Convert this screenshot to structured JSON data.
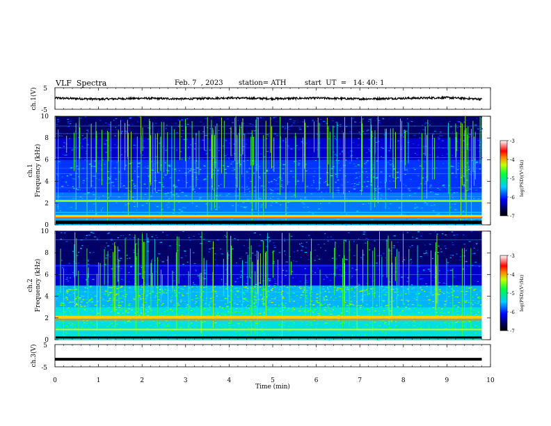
{
  "header": {
    "title": "VLF  Spectra",
    "date": "Feb. 7  , 2023",
    "station": "station= ATH",
    "start": "start  UT  =   14: 40: 1"
  },
  "chart_data": [
    {
      "type": "line",
      "panel": "ch1-waveform",
      "ylabel": "ch.1(V)",
      "ylim": [
        -5,
        5
      ],
      "yticks": [
        "5",
        "-5"
      ],
      "xlim": [
        0,
        10
      ],
      "series": [
        {
          "values_description_note": "",
          "x": [
            0,
            1,
            2,
            3,
            4,
            5,
            6,
            7,
            8,
            9,
            9.8
          ],
          "values": [
            0.2,
            -0.3,
            0.1,
            -0.2,
            0.3,
            -0.1,
            0.2,
            -0.2,
            0.1,
            0.4,
            -0.3
          ]
        }
      ],
      "line_color": "#000000"
    },
    {
      "type": "heatmap",
      "panel": "ch1-spectrogram",
      "ylabel": "ch.1\nFrequency  (kHz)",
      "ylabel_top": "ch.1",
      "ylabel_bottom": "Frequency  (kHz)",
      "ylim": [
        0,
        10
      ],
      "yticks": [
        "0",
        "2",
        "4",
        "6",
        "8",
        "10"
      ],
      "xlim": [
        0,
        10
      ],
      "colorbar": {
        "label": "log(PSD)(V²/Hz)",
        "range": [
          -7,
          -3
        ],
        "ticks": [
          "-3",
          "-4",
          "-5",
          "-6",
          "-7"
        ]
      },
      "data_extent_min": 9.8
    },
    {
      "type": "heatmap",
      "panel": "ch2-spectrogram",
      "ylabel_top": "ch.2",
      "ylabel_bottom": "Frequency  (kHz)",
      "ylim": [
        0,
        10
      ],
      "yticks": [
        "0",
        "2",
        "4",
        "6",
        "8",
        "10"
      ],
      "xlim": [
        0,
        10
      ],
      "colorbar": {
        "label": "log(PSD)(V²/Hz)",
        "range": [
          -7,
          -3
        ],
        "ticks": [
          "-3",
          "-4",
          "-5",
          "-6",
          "-7"
        ]
      },
      "data_extent_min": 9.8
    },
    {
      "type": "line",
      "panel": "ch3-waveform",
      "ylabel": "ch.3(V)",
      "ylim": [
        -5,
        5
      ],
      "yticks": [
        "5",
        "-5"
      ],
      "xlabel": "Time  (min)",
      "xlim": [
        0,
        10
      ],
      "xticks": [
        "0",
        "1",
        "2",
        "3",
        "4",
        "5",
        "6",
        "7",
        "8",
        "9",
        "10"
      ],
      "series": [
        {
          "x": [
            0,
            9.8
          ],
          "values": [
            -1.6,
            -1.6
          ]
        }
      ],
      "line_color": "#000000"
    }
  ]
}
